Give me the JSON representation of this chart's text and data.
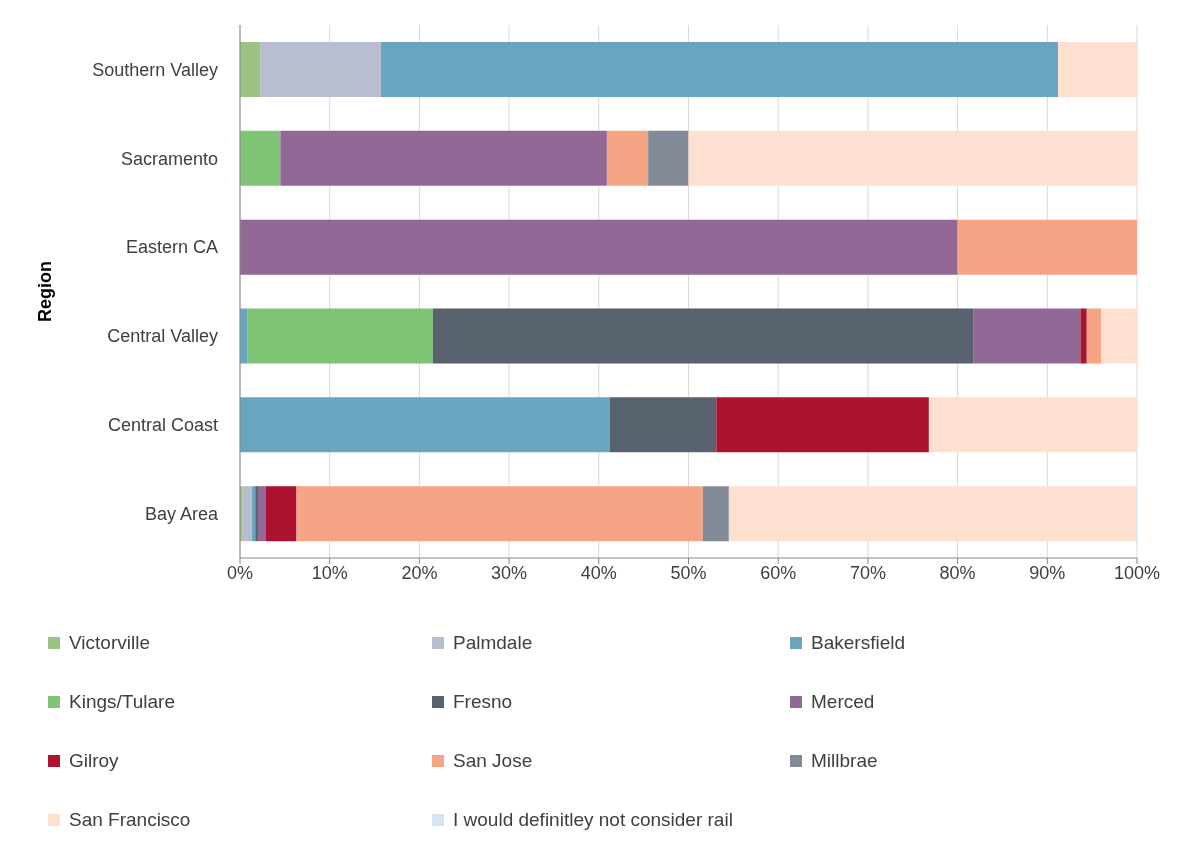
{
  "chart_data": {
    "type": "bar",
    "orientation": "horizontal",
    "stacked": true,
    "ylabel": "Region",
    "categories": [
      "Southern Valley",
      "Sacramento",
      "Eastern CA",
      "Central Valley",
      "Central Coast",
      "Bay Area"
    ],
    "series": [
      {
        "name": "Victorville",
        "color": "#9dc383",
        "values": [
          2.3,
          null,
          null,
          null,
          null,
          0.3
        ]
      },
      {
        "name": "Palmdale",
        "color": "#b8bdd0",
        "values": [
          13.4,
          null,
          null,
          null,
          null,
          1.0
        ]
      },
      {
        "name": "Bakersfield",
        "color": "#6aa5c0",
        "values": [
          75.5,
          null,
          null,
          0.8,
          41.2,
          0.4
        ]
      },
      {
        "name": "Kings/Tulare",
        "color": "#7fc475",
        "values": [
          null,
          4.5,
          null,
          20.7,
          null,
          null
        ]
      },
      {
        "name": "Fresno",
        "color": "#58626e",
        "values": [
          null,
          null,
          null,
          60.3,
          11.9,
          0.3
        ]
      },
      {
        "name": "Merced",
        "color": "#926896",
        "values": [
          null,
          36.4,
          80.0,
          11.9,
          null,
          0.9
        ]
      },
      {
        "name": "Gilroy",
        "color": "#ab1331",
        "values": [
          null,
          null,
          null,
          0.7,
          23.7,
          3.4
        ]
      },
      {
        "name": "San Jose",
        "color": "#f5a586",
        "values": [
          null,
          4.6,
          20.0,
          1.6,
          null,
          45.3
        ]
      },
      {
        "name": "Millbrae",
        "color": "#838a98",
        "values": [
          null,
          4.5,
          null,
          null,
          null,
          2.9
        ]
      },
      {
        "name": "San Francisco",
        "color": "#fde0d0",
        "values": [
          8.8,
          50.0,
          null,
          4.0,
          23.2,
          45.3
        ]
      },
      {
        "name": "I would definitley not consider rail",
        "color": "#d5e6f2",
        "values": [
          null,
          null,
          null,
          null,
          null,
          0.2
        ]
      }
    ],
    "xlim": [
      0,
      100
    ],
    "xticks": [
      {
        "value": 0,
        "label": "0%"
      },
      {
        "value": 10,
        "label": "10%"
      },
      {
        "value": 20,
        "label": "20%"
      },
      {
        "value": 30,
        "label": "30%"
      },
      {
        "value": 40,
        "label": "40%"
      },
      {
        "value": 50,
        "label": "50%"
      },
      {
        "value": 60,
        "label": "60%"
      },
      {
        "value": 70,
        "label": "70%"
      },
      {
        "value": 80,
        "label": "80%"
      },
      {
        "value": 90,
        "label": "90%"
      },
      {
        "value": 100,
        "label": "100%"
      }
    ],
    "grid": "x",
    "legend": "bottom"
  }
}
